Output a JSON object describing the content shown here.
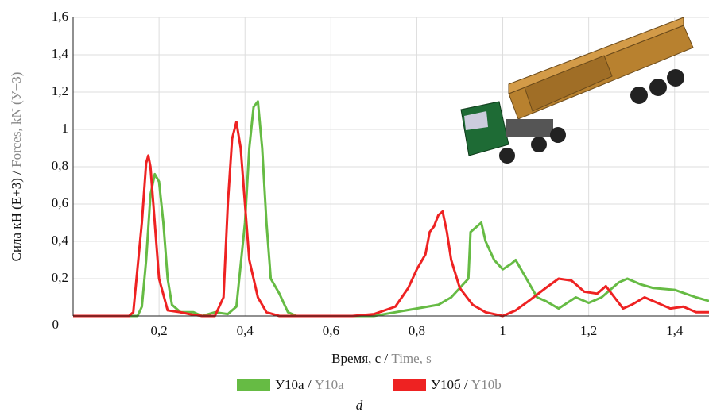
{
  "chart_data": {
    "type": "line",
    "ylabel": {
      "ru": "Сила кН (Е+3) /",
      "en": "Forces, kN (У+3)"
    },
    "xlabel": {
      "ru": "Время, с /",
      "en": "Time, s"
    },
    "caption": "d",
    "xlim": [
      0,
      1.48
    ],
    "ylim": [
      0,
      1.6
    ],
    "xticks": [
      {
        "value": 0.2,
        "label": "0,2"
      },
      {
        "value": 0.4,
        "label": "0,4"
      },
      {
        "value": 0.6,
        "label": "0,6"
      },
      {
        "value": 0.8,
        "label": "0,8"
      },
      1,
      {
        "value": 1.2,
        "label": "1,2"
      },
      {
        "value": 1.4,
        "label": "1,4"
      }
    ],
    "yticks": [
      0,
      {
        "value": 0.2,
        "label": "0,2"
      },
      {
        "value": 0.4,
        "label": "0,4"
      },
      {
        "value": 0.6,
        "label": "0,6"
      },
      {
        "value": 0.8,
        "label": "0,8"
      },
      1,
      {
        "value": 1.2,
        "label": "1,2"
      },
      {
        "value": 1.4,
        "label": "1,4"
      },
      {
        "value": 1.6,
        "label": "1,6"
      }
    ],
    "grid": true,
    "series": [
      {
        "name": "У10а /",
        "name_en": "Y10a",
        "color": "#66bb44",
        "x": [
          0,
          0.15,
          0.16,
          0.17,
          0.18,
          0.19,
          0.2,
          0.21,
          0.22,
          0.23,
          0.25,
          0.28,
          0.3,
          0.33,
          0.36,
          0.38,
          0.4,
          0.41,
          0.42,
          0.43,
          0.44,
          0.45,
          0.46,
          0.48,
          0.5,
          0.52,
          0.7,
          0.75,
          0.8,
          0.85,
          0.88,
          0.9,
          0.92,
          0.925,
          0.94,
          0.95,
          0.96,
          0.98,
          1.0,
          1.02,
          1.03,
          1.05,
          1.08,
          1.1,
          1.13,
          1.15,
          1.17,
          1.2,
          1.23,
          1.27,
          1.29,
          1.32,
          1.35,
          1.4,
          1.45,
          1.48
        ],
        "values": [
          0,
          0,
          0.05,
          0.3,
          0.65,
          0.76,
          0.72,
          0.5,
          0.2,
          0.06,
          0.02,
          0.02,
          0,
          0.02,
          0.01,
          0.05,
          0.5,
          0.9,
          1.12,
          1.15,
          0.9,
          0.5,
          0.2,
          0.12,
          0.02,
          0,
          0,
          0.02,
          0.04,
          0.06,
          0.1,
          0.15,
          0.2,
          0.45,
          0.48,
          0.5,
          0.4,
          0.3,
          0.25,
          0.28,
          0.3,
          0.22,
          0.1,
          0.08,
          0.04,
          0.07,
          0.1,
          0.07,
          0.1,
          0.18,
          0.2,
          0.17,
          0.15,
          0.14,
          0.1,
          0.08
        ]
      },
      {
        "name": "У10б /",
        "name_en": "Y10b",
        "color": "#ee2222",
        "x": [
          0,
          0.13,
          0.14,
          0.16,
          0.17,
          0.175,
          0.18,
          0.19,
          0.2,
          0.22,
          0.25,
          0.27,
          0.3,
          0.33,
          0.35,
          0.36,
          0.37,
          0.38,
          0.39,
          0.4,
          0.41,
          0.43,
          0.45,
          0.48,
          0.65,
          0.7,
          0.75,
          0.78,
          0.8,
          0.82,
          0.83,
          0.84,
          0.85,
          0.86,
          0.87,
          0.88,
          0.9,
          0.93,
          0.96,
          1.0,
          1.03,
          1.06,
          1.1,
          1.13,
          1.16,
          1.19,
          1.22,
          1.24,
          1.26,
          1.28,
          1.3,
          1.33,
          1.36,
          1.39,
          1.42,
          1.45,
          1.48
        ],
        "values": [
          0,
          0,
          0.02,
          0.5,
          0.82,
          0.86,
          0.8,
          0.5,
          0.2,
          0.03,
          0.02,
          0.01,
          0,
          0,
          0.1,
          0.6,
          0.95,
          1.04,
          0.9,
          0.6,
          0.3,
          0.1,
          0.02,
          0,
          0,
          0.01,
          0.05,
          0.15,
          0.25,
          0.33,
          0.45,
          0.48,
          0.54,
          0.56,
          0.45,
          0.3,
          0.15,
          0.06,
          0.02,
          0,
          0.03,
          0.08,
          0.15,
          0.2,
          0.19,
          0.13,
          0.12,
          0.16,
          0.1,
          0.04,
          0.06,
          0.1,
          0.07,
          0.04,
          0.05,
          0.02,
          0.02
        ]
      }
    ]
  }
}
